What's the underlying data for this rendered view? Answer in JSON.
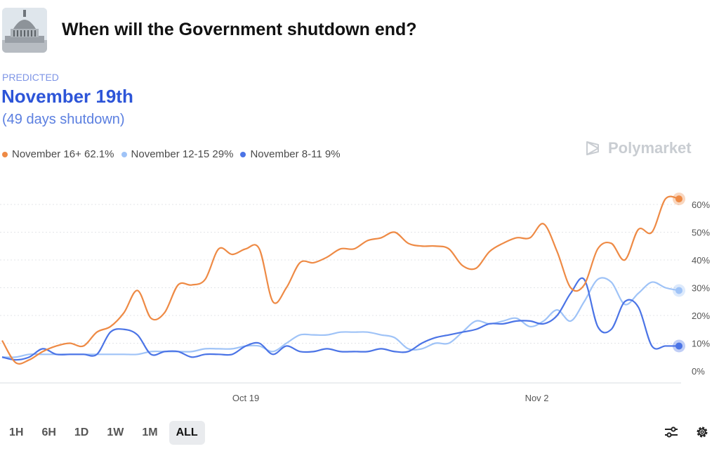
{
  "header": {
    "title": "When will the Government shutdown end?",
    "predicted_label": "PREDICTED",
    "predicted_value": "November 19th",
    "predicted_note": "(49 days shutdown)"
  },
  "brand": {
    "name": "Polymarket"
  },
  "legend": [
    {
      "label": "November 16+ 62.1%",
      "color": "#ee8a45"
    },
    {
      "label": "November 12-15 29%",
      "color": "#9fc3f7"
    },
    {
      "label": "November 8-11 9%",
      "color": "#4b74e6"
    }
  ],
  "time_ranges": [
    {
      "label": "1H",
      "active": false
    },
    {
      "label": "6H",
      "active": false
    },
    {
      "label": "1D",
      "active": false
    },
    {
      "label": "1W",
      "active": false
    },
    {
      "label": "1M",
      "active": false
    },
    {
      "label": "ALL",
      "active": true
    }
  ],
  "icons": {
    "thumbnail": "capitol-building-image",
    "filter": "sliders-icon",
    "settings": "gear-icon",
    "logo": "polymarket-logo-icon"
  },
  "chart_data": {
    "type": "line",
    "x_ticks": [
      "Oct 19",
      "Nov 2"
    ],
    "y_ticks": [
      "0%",
      "10%",
      "20%",
      "30%",
      "40%",
      "50%",
      "60%"
    ],
    "ylim": [
      0,
      65
    ],
    "y_unit": "%",
    "grid": true,
    "legend_position": "top-left",
    "x": [
      0,
      2,
      4,
      6,
      8,
      10,
      12,
      14,
      16,
      18,
      20,
      22,
      24,
      26,
      28,
      30,
      32,
      34,
      36,
      38,
      40,
      42,
      44,
      46,
      48,
      50,
      52,
      54,
      56,
      58,
      60,
      62,
      64,
      66,
      68,
      70,
      72,
      74,
      76,
      78,
      80,
      82,
      84,
      86,
      88,
      90,
      92,
      94,
      96,
      98,
      100
    ],
    "series": [
      {
        "name": "November 16+",
        "color": "#ee8a45",
        "values": [
          11,
          3,
          4,
          7,
          9,
          10,
          9,
          14,
          16,
          21,
          29,
          19,
          21,
          31,
          31,
          33,
          44,
          42,
          44,
          44,
          25,
          30,
          39,
          39,
          41,
          44,
          44,
          47,
          48,
          50,
          46,
          45,
          45,
          44,
          38,
          37,
          43,
          46,
          48,
          48,
          53,
          43,
          30,
          31,
          44,
          46,
          40,
          51,
          50,
          62,
          62
        ]
      },
      {
        "name": "November 12-15",
        "color": "#9fc3f7",
        "values": [
          5,
          5,
          6,
          6,
          6,
          6,
          6,
          6,
          6,
          6,
          6,
          7,
          7,
          7,
          7,
          8,
          8,
          8,
          9,
          9,
          7,
          10,
          13,
          13,
          13,
          14,
          14,
          14,
          13,
          12,
          8,
          8,
          10,
          10,
          14,
          18,
          17,
          18,
          19,
          16,
          18,
          22,
          18,
          25,
          33,
          32,
          24,
          28,
          32,
          30,
          29
        ]
      },
      {
        "name": "November 8-11",
        "color": "#4b74e6",
        "values": [
          5,
          4,
          5,
          8,
          6,
          6,
          6,
          6,
          14,
          15,
          13,
          6,
          7,
          7,
          5,
          6,
          6,
          6,
          9,
          10,
          6,
          9,
          7,
          7,
          8,
          7,
          7,
          7,
          8,
          7,
          7,
          10,
          12,
          13,
          14,
          15,
          17,
          17,
          18,
          18,
          17,
          20,
          28,
          33,
          16,
          15,
          25,
          23,
          9,
          9,
          9
        ]
      }
    ]
  }
}
